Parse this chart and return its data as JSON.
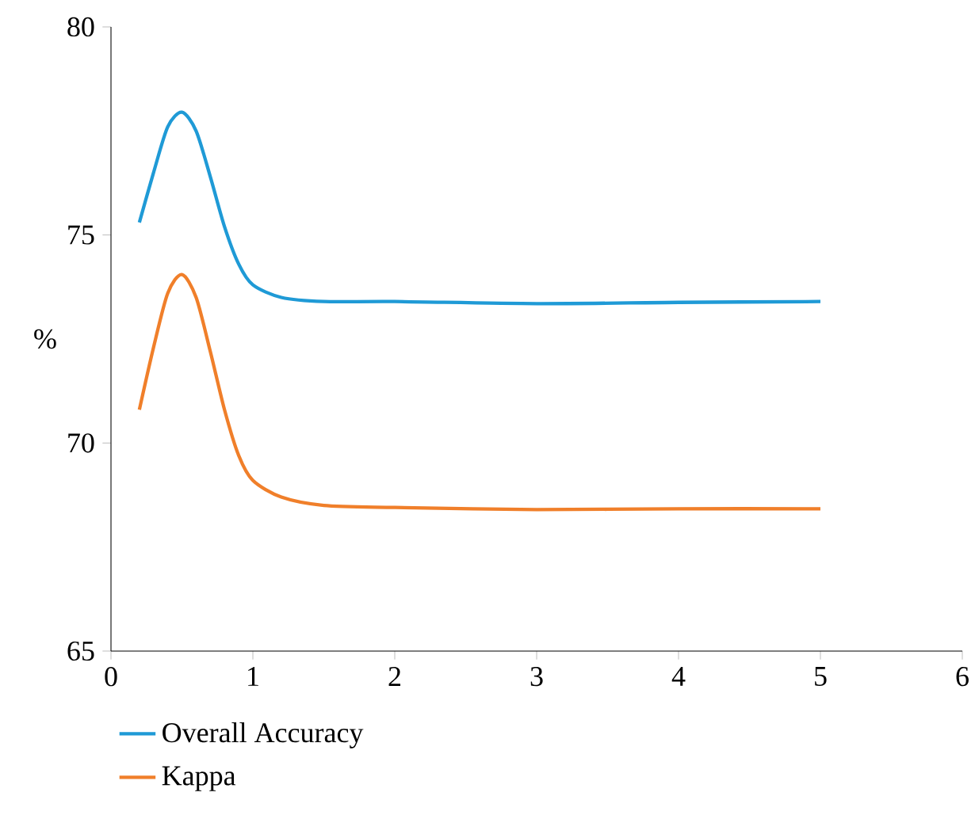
{
  "chart_data": {
    "type": "line",
    "ylabel": "%",
    "xlim": [
      0,
      6
    ],
    "ylim": [
      65,
      80
    ],
    "xticks": [
      0,
      1,
      2,
      3,
      4,
      5,
      6
    ],
    "yticks": [
      65,
      70,
      75,
      80
    ],
    "grid": false,
    "legend": "bottom",
    "marker": "none",
    "line_style": "solid",
    "series": [
      {
        "name": "Overall Accuracy",
        "color": "#1f9ad6",
        "x": [
          0.2,
          0.3,
          0.4,
          0.5,
          0.6,
          0.7,
          0.8,
          0.9,
          1.0,
          1.2,
          1.5,
          2,
          3,
          4,
          5
        ],
        "values": [
          75.3,
          76.5,
          77.6,
          77.95,
          77.5,
          76.4,
          75.2,
          74.3,
          73.8,
          73.5,
          73.4,
          73.4,
          73.35,
          73.38,
          73.4
        ]
      },
      {
        "name": "Kappa",
        "color": "#f07f2a",
        "x": [
          0.2,
          0.3,
          0.4,
          0.5,
          0.6,
          0.7,
          0.8,
          0.9,
          1.0,
          1.2,
          1.5,
          2,
          3,
          4,
          5
        ],
        "values": [
          70.8,
          72.3,
          73.6,
          74.05,
          73.5,
          72.2,
          70.8,
          69.7,
          69.1,
          68.7,
          68.5,
          68.45,
          68.4,
          68.42,
          68.42
        ]
      }
    ]
  }
}
